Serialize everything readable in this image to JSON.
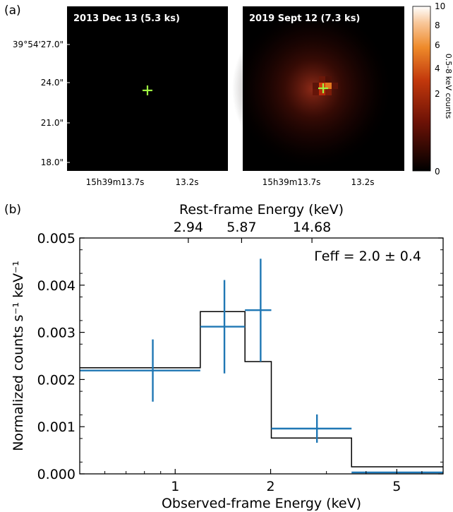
{
  "figure": {
    "panel_a_label": "(a)",
    "panel_b_label": "(b)"
  },
  "images": {
    "panels": [
      {
        "title": "2013 Dec 13 (5.3 ks)"
      },
      {
        "title": "2019 Sept 12 (7.3 ks)"
      }
    ],
    "dec_ticks": [
      "39°54'27.0\"",
      "24.0\"",
      "21.0\"",
      "18.0\""
    ],
    "ra_ticks": [
      "15h39m13.7s",
      "13.2s"
    ],
    "marker_color": "#9ef542",
    "colorbar": {
      "label": "0.5-8 keV counts",
      "ticks": [
        "10",
        "8",
        "6",
        "4",
        "2",
        "0"
      ]
    }
  },
  "chart_data": {
    "type": "step-with-errorbars",
    "xlabel": "Observed-frame Energy (keV)",
    "ylabel": "Normalized counts s⁻¹ keV⁻¹",
    "top_xlabel": "Rest-frame Energy (keV)",
    "top_ticks": [
      "2.94",
      "5.87",
      "14.68"
    ],
    "x_scale": "log",
    "xlim": [
      0.5,
      7.0
    ],
    "ylim": [
      0.0,
      0.005
    ],
    "x_ticks": [
      "1",
      "2",
      "5"
    ],
    "y_ticks": [
      "0.000",
      "0.001",
      "0.002",
      "0.003",
      "0.004",
      "0.005"
    ],
    "annotation": "Γeff = 2.0 ± 0.4",
    "data_color": "#1f77b4",
    "model_color": "#000000",
    "data": [
      {
        "xlo": 0.5,
        "xhi": 1.2,
        "x": 0.85,
        "y": 0.00219,
        "yerr": 0.00066
      },
      {
        "xlo": 1.2,
        "xhi": 1.66,
        "x": 1.43,
        "y": 0.00312,
        "yerr": 0.00099
      },
      {
        "xlo": 1.66,
        "xhi": 2.01,
        "x": 1.86,
        "y": 0.00347,
        "yerr": 0.00109
      },
      {
        "xlo": 2.01,
        "xhi": 3.6,
        "x": 2.8,
        "y": 0.00096,
        "yerr": 0.0003
      },
      {
        "xlo": 3.6,
        "xhi": 7.0,
        "x": 5.1,
        "y": 3e-05,
        "yerr": 1e-05
      }
    ],
    "model": [
      {
        "xlo": 0.5,
        "xhi": 1.2,
        "y": 0.00225
      },
      {
        "xlo": 1.2,
        "xhi": 1.66,
        "y": 0.00344
      },
      {
        "xlo": 1.66,
        "xhi": 2.01,
        "y": 0.00238
      },
      {
        "xlo": 2.01,
        "xhi": 3.6,
        "y": 0.00076
      },
      {
        "xlo": 3.6,
        "xhi": 7.0,
        "y": 0.00015
      }
    ]
  }
}
